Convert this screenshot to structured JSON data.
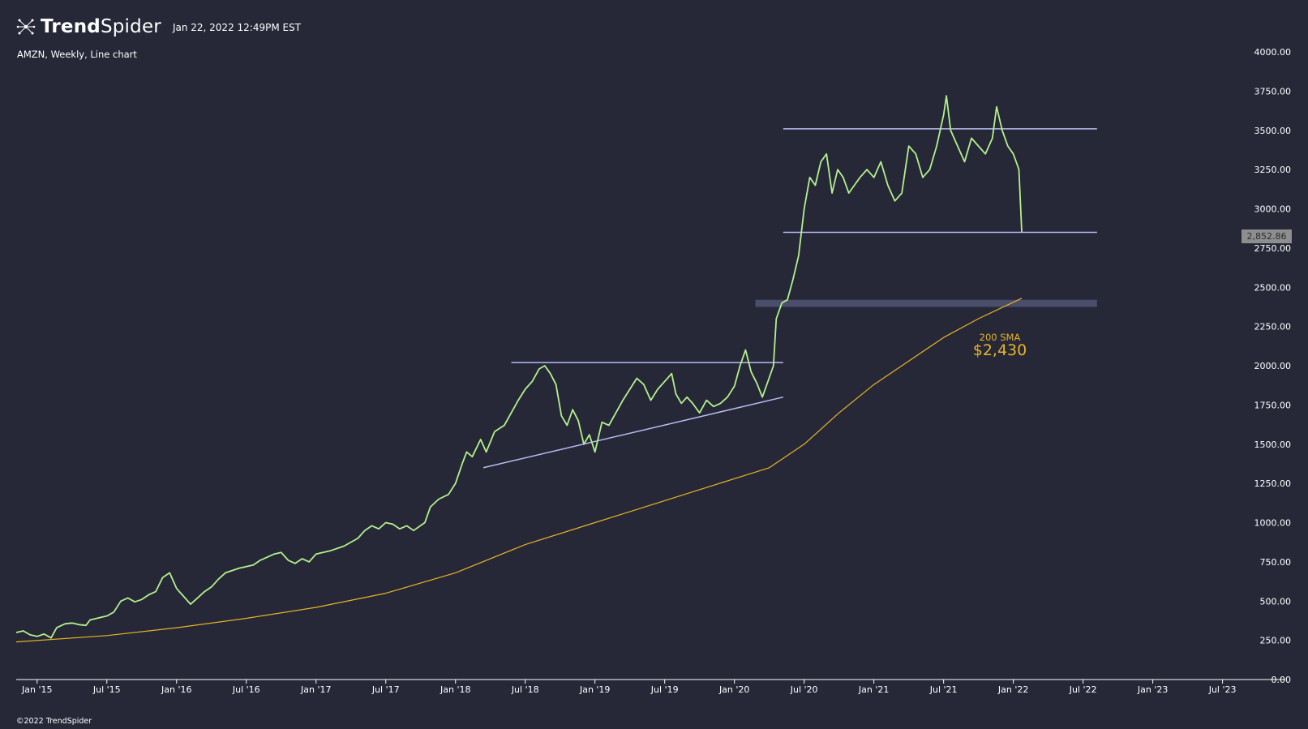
{
  "header": {
    "brand_bold": "Trend",
    "brand_thin": "Spider",
    "timestamp": "Jan 22, 2022 12:49PM EST",
    "logo_icon": "spider-network-icon"
  },
  "subtitle": "AMZN, Weekly, Line chart",
  "copyright": "©2022 TrendSpider",
  "last_price_label": "2,852.86",
  "sma": {
    "label": "200 SMA",
    "value_label": "$2,430"
  },
  "colors": {
    "background": "#262838",
    "price_line": "#b4f08c",
    "sma_line": "#e6b425",
    "trend_lines": "#b9bcf0",
    "zone": "#4a4e6a",
    "axis_text": "#ffffff"
  },
  "chart_data": {
    "type": "line",
    "ylim": [
      0,
      4000
    ],
    "grid": false,
    "y_ticks": [
      "0.00",
      "250.00",
      "500.00",
      "750.00",
      "1000.00",
      "1250.00",
      "1500.00",
      "1750.00",
      "2000.00",
      "2250.00",
      "2500.00",
      "2750.00",
      "3000.00",
      "3250.00",
      "3500.00",
      "3750.00",
      "4000.00"
    ],
    "y_tick_values": [
      0,
      250,
      500,
      750,
      1000,
      1250,
      1500,
      1750,
      2000,
      2250,
      2500,
      2750,
      3000,
      3250,
      3500,
      3750,
      4000
    ],
    "x_ticks": [
      "Jan '15",
      "Jul '15",
      "Jan '16",
      "Jul '16",
      "Jan '17",
      "Jul '17",
      "Jan '18",
      "Jul '18",
      "Jan '19",
      "Jul '19",
      "Jan '20",
      "Jul '20",
      "Jan '21",
      "Jul '21",
      "Jan '22",
      "Jul '22",
      "Jan '23",
      "Jul '23"
    ],
    "x_tick_values": [
      2015.0,
      2015.5,
      2016.0,
      2016.5,
      2017.0,
      2017.5,
      2018.0,
      2018.5,
      2019.0,
      2019.5,
      2020.0,
      2020.5,
      2021.0,
      2021.5,
      2022.0,
      2022.5,
      2023.0,
      2023.5
    ],
    "xlim": [
      2014.85,
      2023.95
    ],
    "series": [
      {
        "name": "AMZN",
        "points": [
          [
            2014.85,
            300
          ],
          [
            2014.9,
            310
          ],
          [
            2014.95,
            285
          ],
          [
            2015.0,
            275
          ],
          [
            2015.05,
            290
          ],
          [
            2015.1,
            265
          ],
          [
            2015.14,
            330
          ],
          [
            2015.2,
            355
          ],
          [
            2015.25,
            360
          ],
          [
            2015.3,
            350
          ],
          [
            2015.35,
            345
          ],
          [
            2015.38,
            380
          ],
          [
            2015.45,
            395
          ],
          [
            2015.5,
            405
          ],
          [
            2015.55,
            430
          ],
          [
            2015.6,
            500
          ],
          [
            2015.65,
            520
          ],
          [
            2015.7,
            495
          ],
          [
            2015.75,
            510
          ],
          [
            2015.8,
            540
          ],
          [
            2015.85,
            560
          ],
          [
            2015.9,
            650
          ],
          [
            2015.95,
            680
          ],
          [
            2016.0,
            580
          ],
          [
            2016.05,
            530
          ],
          [
            2016.1,
            480
          ],
          [
            2016.15,
            520
          ],
          [
            2016.2,
            560
          ],
          [
            2016.25,
            590
          ],
          [
            2016.3,
            640
          ],
          [
            2016.35,
            680
          ],
          [
            2016.45,
            710
          ],
          [
            2016.55,
            730
          ],
          [
            2016.6,
            760
          ],
          [
            2016.65,
            780
          ],
          [
            2016.7,
            800
          ],
          [
            2016.75,
            810
          ],
          [
            2016.8,
            760
          ],
          [
            2016.85,
            740
          ],
          [
            2016.9,
            770
          ],
          [
            2016.95,
            750
          ],
          [
            2017.0,
            800
          ],
          [
            2017.1,
            820
          ],
          [
            2017.2,
            850
          ],
          [
            2017.3,
            900
          ],
          [
            2017.35,
            950
          ],
          [
            2017.4,
            980
          ],
          [
            2017.45,
            960
          ],
          [
            2017.5,
            1000
          ],
          [
            2017.55,
            990
          ],
          [
            2017.6,
            960
          ],
          [
            2017.65,
            980
          ],
          [
            2017.7,
            950
          ],
          [
            2017.78,
            1000
          ],
          [
            2017.82,
            1100
          ],
          [
            2017.88,
            1150
          ],
          [
            2017.95,
            1180
          ],
          [
            2018.0,
            1250
          ],
          [
            2018.05,
            1380
          ],
          [
            2018.08,
            1450
          ],
          [
            2018.12,
            1420
          ],
          [
            2018.18,
            1530
          ],
          [
            2018.22,
            1450
          ],
          [
            2018.28,
            1580
          ],
          [
            2018.35,
            1620
          ],
          [
            2018.4,
            1700
          ],
          [
            2018.45,
            1780
          ],
          [
            2018.5,
            1850
          ],
          [
            2018.55,
            1900
          ],
          [
            2018.6,
            1980
          ],
          [
            2018.64,
            2000
          ],
          [
            2018.68,
            1950
          ],
          [
            2018.72,
            1880
          ],
          [
            2018.76,
            1680
          ],
          [
            2018.8,
            1620
          ],
          [
            2018.84,
            1720
          ],
          [
            2018.88,
            1650
          ],
          [
            2018.92,
            1500
          ],
          [
            2018.96,
            1560
          ],
          [
            2019.0,
            1450
          ],
          [
            2019.05,
            1640
          ],
          [
            2019.1,
            1620
          ],
          [
            2019.15,
            1700
          ],
          [
            2019.2,
            1780
          ],
          [
            2019.25,
            1850
          ],
          [
            2019.3,
            1920
          ],
          [
            2019.35,
            1880
          ],
          [
            2019.4,
            1780
          ],
          [
            2019.45,
            1850
          ],
          [
            2019.5,
            1900
          ],
          [
            2019.55,
            1950
          ],
          [
            2019.58,
            1820
          ],
          [
            2019.62,
            1760
          ],
          [
            2019.66,
            1800
          ],
          [
            2019.7,
            1760
          ],
          [
            2019.75,
            1700
          ],
          [
            2019.8,
            1780
          ],
          [
            2019.85,
            1740
          ],
          [
            2019.9,
            1760
          ],
          [
            2019.95,
            1800
          ],
          [
            2020.0,
            1870
          ],
          [
            2020.04,
            2000
          ],
          [
            2020.08,
            2100
          ],
          [
            2020.12,
            1960
          ],
          [
            2020.16,
            1890
          ],
          [
            2020.2,
            1800
          ],
          [
            2020.24,
            1900
          ],
          [
            2020.28,
            2000
          ],
          [
            2020.3,
            2300
          ],
          [
            2020.34,
            2400
          ],
          [
            2020.38,
            2420
          ],
          [
            2020.42,
            2550
          ],
          [
            2020.46,
            2700
          ],
          [
            2020.5,
            3000
          ],
          [
            2020.54,
            3200
          ],
          [
            2020.58,
            3150
          ],
          [
            2020.62,
            3300
          ],
          [
            2020.66,
            3350
          ],
          [
            2020.7,
            3100
          ],
          [
            2020.74,
            3250
          ],
          [
            2020.78,
            3200
          ],
          [
            2020.82,
            3100
          ],
          [
            2020.86,
            3150
          ],
          [
            2020.9,
            3200
          ],
          [
            2020.95,
            3250
          ],
          [
            2021.0,
            3200
          ],
          [
            2021.05,
            3300
          ],
          [
            2021.1,
            3150
          ],
          [
            2021.15,
            3050
          ],
          [
            2021.2,
            3100
          ],
          [
            2021.25,
            3400
          ],
          [
            2021.3,
            3350
          ],
          [
            2021.35,
            3200
          ],
          [
            2021.4,
            3250
          ],
          [
            2021.45,
            3400
          ],
          [
            2021.5,
            3600
          ],
          [
            2021.52,
            3720
          ],
          [
            2021.55,
            3500
          ],
          [
            2021.6,
            3400
          ],
          [
            2021.65,
            3300
          ],
          [
            2021.7,
            3450
          ],
          [
            2021.75,
            3400
          ],
          [
            2021.8,
            3350
          ],
          [
            2021.85,
            3450
          ],
          [
            2021.88,
            3650
          ],
          [
            2021.92,
            3500
          ],
          [
            2021.96,
            3400
          ],
          [
            2022.0,
            3350
          ],
          [
            2022.02,
            3300
          ],
          [
            2022.04,
            3250
          ],
          [
            2022.06,
            2852.86
          ]
        ]
      },
      {
        "name": "200 SMA",
        "points": [
          [
            2014.85,
            240
          ],
          [
            2015.5,
            280
          ],
          [
            2016.0,
            330
          ],
          [
            2016.5,
            390
          ],
          [
            2017.0,
            460
          ],
          [
            2017.5,
            550
          ],
          [
            2018.0,
            680
          ],
          [
            2018.5,
            860
          ],
          [
            2019.0,
            1000
          ],
          [
            2019.5,
            1140
          ],
          [
            2020.0,
            1280
          ],
          [
            2020.25,
            1350
          ],
          [
            2020.5,
            1500
          ],
          [
            2020.75,
            1700
          ],
          [
            2021.0,
            1880
          ],
          [
            2021.25,
            2030
          ],
          [
            2021.5,
            2180
          ],
          [
            2021.75,
            2300
          ],
          [
            2022.06,
            2430
          ]
        ]
      }
    ],
    "annotations": {
      "horizontal_lines": [
        {
          "y": 2020,
          "x_from": 2018.4,
          "x_to": 2020.35
        },
        {
          "y": 3510,
          "x_from": 2020.35,
          "x_to": 2022.6
        },
        {
          "y": 2850,
          "x_from": 2020.35,
          "x_to": 2022.6
        }
      ],
      "trend_line": {
        "from": [
          2018.2,
          1350
        ],
        "to": [
          2020.35,
          1800
        ]
      },
      "zone": {
        "y_from": 2375,
        "y_to": 2420,
        "x_from": 2020.15,
        "x_to": 2022.6
      }
    }
  }
}
